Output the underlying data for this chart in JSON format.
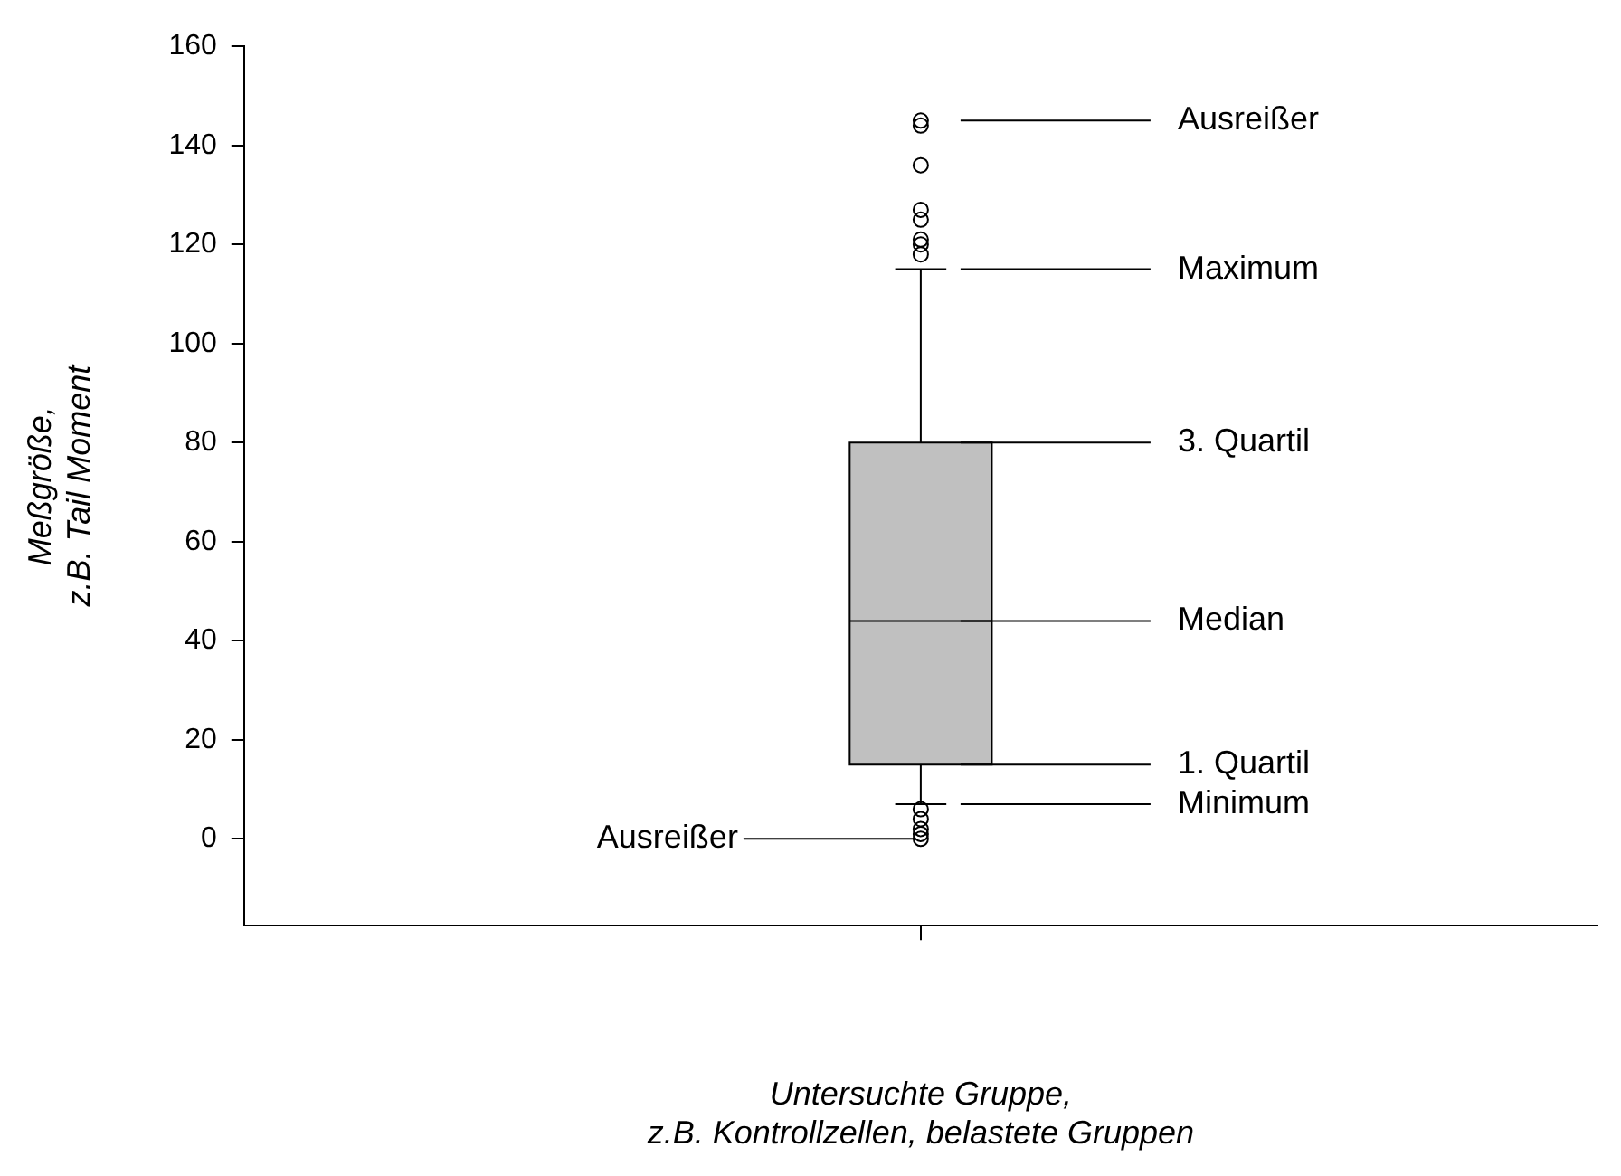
{
  "chart_data": {
    "type": "box",
    "xlabel": "Untersuchte Gruppe,\nz.B. Kontrollzellen, belastete Gruppen",
    "ylabel": "Meßgröße,\nz.B. Tail Moment",
    "categories": [
      null
    ],
    "color": "#c0c0c0",
    "boxes": [
      {
        "low": 7,
        "q1": 15,
        "median": 44,
        "q3": 80,
        "high": 115,
        "outliers": [
          145,
          144,
          136,
          127,
          125,
          121,
          120,
          118,
          6,
          4,
          2,
          1,
          0
        ]
      }
    ],
    "ylim": [
      -17.5,
      160
    ],
    "yticks": [
      0,
      20,
      40,
      60,
      80,
      100,
      120,
      140,
      160
    ],
    "grid": false,
    "legend": false,
    "annotations": [
      "Ausreißer",
      "Maximum",
      "3. Quartil",
      "Median",
      "1. Quartil",
      "Minimum",
      "Ausreißer"
    ]
  }
}
